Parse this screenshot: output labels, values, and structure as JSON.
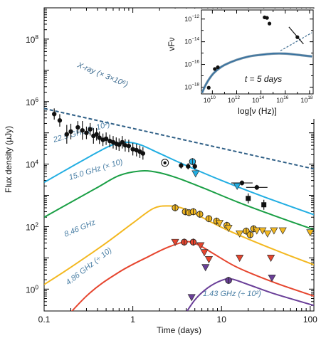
{
  "chart_data": {
    "type": "line",
    "xscale": "log",
    "yscale": "log",
    "xlim": [
      0.1,
      110
    ],
    "ylim": [
      0.2,
      1000000000
    ],
    "xlabel": "Time (days)",
    "ylabel": "Flux density (μJy)",
    "x_ticks": [
      {
        "v": 0.1,
        "label": "0.1"
      },
      {
        "v": 1,
        "label": "1"
      },
      {
        "v": 10,
        "label": "10"
      },
      {
        "v": 100,
        "label": "100"
      }
    ],
    "y_ticks": [
      {
        "v": 1,
        "m": "10",
        "e": "0"
      },
      {
        "v": 100,
        "m": "10",
        "e": "2"
      },
      {
        "v": 10000,
        "m": "10",
        "e": "4"
      },
      {
        "v": 1000000,
        "m": "10",
        "e": "6"
      },
      {
        "v": 100000000,
        "m": "10",
        "e": "8"
      }
    ],
    "series": [
      {
        "name": "X-ray (× 3×10⁶)",
        "color": "#2f5f86",
        "style": "dashed",
        "label_color": "#3f6d91",
        "model": [
          [
            0.1,
            600000
          ],
          [
            110,
            7000
          ]
        ],
        "points": [
          {
            "x": 0.13,
            "y": 400000,
            "yerr": 0.18
          },
          {
            "x": 0.15,
            "y": 250000,
            "yerr": 0.2
          },
          {
            "x": 0.18,
            "y": 90000,
            "yerr": 0.3
          },
          {
            "x": 0.2,
            "y": 110000,
            "yerr": 0.25
          },
          {
            "x": 0.24,
            "y": 150000,
            "yerr": 0.2
          },
          {
            "x": 0.27,
            "y": 120000,
            "yerr": 0.3
          },
          {
            "x": 0.3,
            "y": 100000,
            "yerr": 0.2
          },
          {
            "x": 0.33,
            "y": 130000,
            "yerr": 0.2
          },
          {
            "x": 0.36,
            "y": 80000,
            "yerr": 0.25
          },
          {
            "x": 0.39,
            "y": 90000,
            "yerr": 0.2
          },
          {
            "x": 0.42,
            "y": 70000,
            "yerr": 0.2
          },
          {
            "x": 0.46,
            "y": 60000,
            "yerr": 0.2
          },
          {
            "x": 0.5,
            "y": 65000,
            "yerr": 0.2
          },
          {
            "x": 0.55,
            "y": 55000,
            "yerr": 0.2
          },
          {
            "x": 0.6,
            "y": 50000,
            "yerr": 0.2
          },
          {
            "x": 0.65,
            "y": 45000,
            "yerr": 0.2
          },
          {
            "x": 0.7,
            "y": 42000,
            "yerr": 0.2
          },
          {
            "x": 0.76,
            "y": 50000,
            "yerr": 0.2
          },
          {
            "x": 0.82,
            "y": 40000,
            "yerr": 0.2
          },
          {
            "x": 0.9,
            "y": 38000,
            "yerr": 0.2
          },
          {
            "x": 1.0,
            "y": 30000,
            "yerr": 0.2
          },
          {
            "x": 1.1,
            "y": 28000,
            "yerr": 0.2
          },
          {
            "x": 1.2,
            "y": 25000,
            "yerr": 0.2
          },
          {
            "x": 1.3,
            "y": 22000,
            "yerr": 0.2
          },
          {
            "x": 3.5,
            "y": 9000,
            "yerr": 0.1
          },
          {
            "x": 4.2,
            "y": 8500,
            "yerr": 0.1
          },
          {
            "x": 5.0,
            "y": 8500,
            "yerr": 0.1
          },
          {
            "x": 17,
            "y": 2500,
            "yerr": 0.08
          },
          {
            "x": 25,
            "y": 1800,
            "yerr": 0.08
          }
        ],
        "squares": [
          {
            "x": 20,
            "y": 800
          },
          {
            "x": 30,
            "y": 500
          }
        ]
      },
      {
        "name": "22.5 GHz (× 10²)",
        "color": "#22aee2",
        "label_color": "#4a7fa5",
        "model": [
          [
            0.1,
            2600
          ],
          [
            0.2,
            8000
          ],
          [
            0.4,
            24000
          ],
          [
            0.6,
            42000
          ],
          [
            0.85,
            50000
          ],
          [
            1.2,
            42000
          ],
          [
            2,
            22000
          ],
          [
            4,
            9000
          ],
          [
            10,
            3000
          ],
          [
            30,
            900
          ],
          [
            110,
            240
          ]
        ],
        "points": [
          {
            "x": 4.7,
            "y": 12000,
            "shape": "circle"
          }
        ],
        "upper_limits": [
          {
            "x": 5.1,
            "y": 5000
          },
          {
            "x": 15,
            "y": 2000
          }
        ]
      },
      {
        "name": "15.0 GHz (× 10)",
        "color": "#1a9f45",
        "label_color": "#4a7fa5",
        "model": [
          [
            0.1,
            200
          ],
          [
            0.2,
            600
          ],
          [
            0.4,
            1800
          ],
          [
            0.7,
            4300
          ],
          [
            1.2,
            6000
          ],
          [
            1.8,
            5600
          ],
          [
            3,
            3800
          ],
          [
            6,
            1800
          ],
          [
            15,
            620
          ],
          [
            40,
            220
          ],
          [
            110,
            80
          ]
        ],
        "points": [],
        "upper_limits": []
      },
      {
        "name": "8.46 GHz",
        "color": "#f3b820",
        "label_color": "#4a7fa5",
        "model": [
          [
            0.1,
            1.4
          ],
          [
            0.2,
            5
          ],
          [
            0.5,
            30
          ],
          [
            1,
            130
          ],
          [
            1.7,
            380
          ],
          [
            2.5,
            460
          ],
          [
            3.5,
            400
          ],
          [
            5,
            260
          ],
          [
            10,
            95
          ],
          [
            20,
            40
          ],
          [
            50,
            14
          ],
          [
            110,
            6
          ]
        ],
        "points": [
          {
            "x": 3.0,
            "y": 400,
            "shape": "circle"
          },
          {
            "x": 3.9,
            "y": 300,
            "shape": "circle"
          },
          {
            "x": 4.3,
            "y": 280,
            "shape": "circle"
          },
          {
            "x": 4.8,
            "y": 300,
            "shape": "circle"
          },
          {
            "x": 5.7,
            "y": 250,
            "shape": "circle"
          },
          {
            "x": 7.2,
            "y": 180,
            "shape": "circle"
          },
          {
            "x": 8.8,
            "y": 150,
            "shape": "circle"
          },
          {
            "x": 11.5,
            "y": 110,
            "shape": "circle"
          },
          {
            "x": 19,
            "y": 72,
            "shape": "circle"
          },
          {
            "x": 21,
            "y": 55,
            "shape": "circle"
          },
          {
            "x": 23,
            "y": 85,
            "shape": "circle"
          }
        ],
        "upper_limits": [
          {
            "x": 9.5,
            "y": 130
          },
          {
            "x": 12,
            "y": 90
          },
          {
            "x": 16,
            "y": 60
          },
          {
            "x": 25,
            "y": 75
          },
          {
            "x": 29,
            "y": 75
          },
          {
            "x": 33,
            "y": 60
          },
          {
            "x": 39,
            "y": 75
          },
          {
            "x": 49,
            "y": 75
          },
          {
            "x": 100,
            "y": 65
          }
        ]
      },
      {
        "name": "4.86 GHz (÷ 10)",
        "color": "#e6452e",
        "label_color": "#4a7fa5",
        "model": [
          [
            0.1,
            0.02
          ],
          [
            0.3,
            0.6
          ],
          [
            0.7,
            3.5
          ],
          [
            1.5,
            11
          ],
          [
            2.5,
            22
          ],
          [
            4,
            33
          ],
          [
            5.5,
            26
          ],
          [
            8,
            14
          ],
          [
            15,
            5
          ],
          [
            40,
            1.6
          ],
          [
            110,
            0.6
          ]
        ],
        "points": [
          {
            "x": 3.8,
            "y": 32,
            "shape": "circle"
          },
          {
            "x": 4.8,
            "y": 32,
            "shape": "circle"
          }
        ],
        "upper_limits": [
          {
            "x": 3.0,
            "y": 32
          },
          {
            "x": 5.8,
            "y": 25
          },
          {
            "x": 6.4,
            "y": 15
          },
          {
            "x": 7.2,
            "y": 9
          },
          {
            "x": 16,
            "y": 10
          },
          {
            "x": 36,
            "y": 10
          }
        ]
      },
      {
        "name": "1.43 GHz (÷ 10²)",
        "color": "#6a3f98",
        "label_color": "#4a7fa5",
        "model": [
          [
            3.5,
            0.1
          ],
          [
            5,
            0.45
          ],
          [
            7,
            1.1
          ],
          [
            10,
            1.9
          ],
          [
            13,
            2.1
          ],
          [
            20,
            1.4
          ],
          [
            40,
            0.7
          ],
          [
            110,
            0.3
          ]
        ],
        "points": [
          {
            "x": 12,
            "y": 1.9,
            "shape": "circle"
          }
        ],
        "upper_limits": [
          {
            "x": 6.6,
            "y": 5
          },
          {
            "x": 4.6,
            "y": 0.55
          },
          {
            "x": 37,
            "y": 2.3
          }
        ]
      }
    ],
    "inset": {
      "xlabel": "log[ν (Hz)]",
      "ylabel": "νFν",
      "annotation": "t = 5 days",
      "xlim": [
        9.1,
        18.3
      ],
      "ylim": [
        -18.6,
        -11.2
      ],
      "x_ticks": [
        {
          "v": 10,
          "m": "10",
          "e": "10"
        },
        {
          "v": 12,
          "m": "10",
          "e": "12"
        },
        {
          "v": 14,
          "m": "10",
          "e": "14"
        },
        {
          "v": 16,
          "m": "10",
          "e": "16"
        },
        {
          "v": 18,
          "m": "10",
          "e": "18"
        }
      ],
      "y_ticks": [
        {
          "v": -12,
          "m": "10",
          "e": "−12"
        },
        {
          "v": -14,
          "m": "10",
          "e": "−14"
        },
        {
          "v": -16,
          "m": "10",
          "e": "−16"
        },
        {
          "v": -18,
          "m": "10",
          "e": "−18"
        }
      ],
      "model": [
        [
          9.15,
          -18.5
        ],
        [
          9.5,
          -17.7
        ],
        [
          10,
          -16.9
        ],
        [
          10.5,
          -16.4
        ],
        [
          11,
          -16.05
        ],
        [
          12,
          -15.6
        ],
        [
          13,
          -15.3
        ],
        [
          14,
          -15.15
        ],
        [
          15,
          -15.05
        ],
        [
          16,
          -15.05
        ],
        [
          17,
          -15.15
        ],
        [
          18.2,
          -15.3
        ]
      ],
      "dashed": [
        [
          15.6,
          -14.8
        ],
        [
          18.2,
          -13.2
        ]
      ],
      "points": [
        {
          "x": 9.7,
          "y": -18.05
        },
        {
          "x": 10.2,
          "y": -16.4
        },
        {
          "x": 10.45,
          "y": -16.25
        },
        {
          "x": 14.3,
          "y": -11.85
        },
        {
          "x": 14.5,
          "y": -11.9
        },
        {
          "x": 14.7,
          "y": -12.4
        },
        {
          "x": 17.0,
          "y": -13.6
        }
      ],
      "solid_segment": [
        [
          16.3,
          -12.7
        ],
        [
          17.5,
          -14.2
        ]
      ]
    }
  }
}
